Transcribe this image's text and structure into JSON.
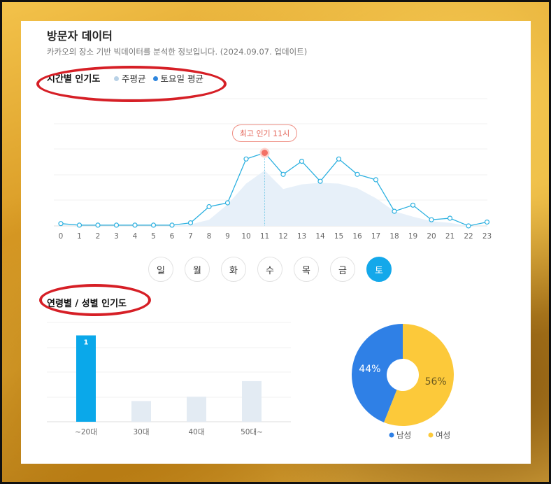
{
  "header": {
    "title": "방문자 데이터",
    "subtitle": "카카오의 장소 기반 빅데이터를 분석한 정보입니다. (2024.09.07. 업데이트)"
  },
  "hourly": {
    "section_title": "시간별 인기도",
    "legend": [
      {
        "label": "주평균",
        "color": "#b8d1e6"
      },
      {
        "label": "토요일 평균",
        "color": "#2e86de"
      }
    ],
    "peak_label": "최고 인기 11시",
    "colors": {
      "line": "#2bb0e0",
      "area": "#e7f0f9",
      "peak": "#f37166"
    }
  },
  "days": {
    "items": [
      "일",
      "월",
      "화",
      "수",
      "목",
      "금",
      "토"
    ],
    "selected": "토"
  },
  "demographics": {
    "section_title": "연령별 / 성별 인기도"
  },
  "chart_data": [
    {
      "type": "line",
      "x": [
        0,
        1,
        2,
        3,
        4,
        5,
        6,
        7,
        8,
        9,
        10,
        11,
        12,
        13,
        14,
        15,
        16,
        17,
        18,
        19,
        20,
        21,
        22,
        23
      ],
      "xlabel": "",
      "ylabel": "",
      "series": [
        {
          "name": "토요일 평균",
          "values": [
            3,
            1,
            1,
            1,
            1,
            1,
            1,
            4,
            25,
            30,
            87,
            95,
            67,
            84,
            58,
            87,
            67,
            60,
            19,
            27,
            8,
            10,
            0,
            5
          ]
        },
        {
          "name": "주평균",
          "values": [
            0,
            0,
            0,
            0,
            0,
            0,
            0,
            2,
            8,
            28,
            55,
            72,
            48,
            54,
            56,
            55,
            49,
            36,
            19,
            12,
            6,
            4,
            0,
            0
          ]
        }
      ],
      "ylim": [
        0,
        100
      ],
      "peak": {
        "x": 11,
        "label": "최고 인기 11시"
      }
    },
    {
      "type": "bar",
      "categories": [
        "~20대",
        "30대",
        "40대",
        "50대~"
      ],
      "values": [
        100,
        24,
        29,
        47
      ],
      "bar_labels": [
        "1",
        "",
        "",
        ""
      ],
      "ylim": [
        0,
        115
      ],
      "colors": {
        "highlight": "#0aa8ea",
        "normal": "#e3ebf3"
      }
    },
    {
      "type": "pie",
      "labels": [
        "남성",
        "여성"
      ],
      "values": [
        44,
        56
      ],
      "value_labels": [
        "44%",
        "56%"
      ],
      "colors": [
        "#2f80e6",
        "#fcc93a"
      ],
      "donut": true
    }
  ]
}
